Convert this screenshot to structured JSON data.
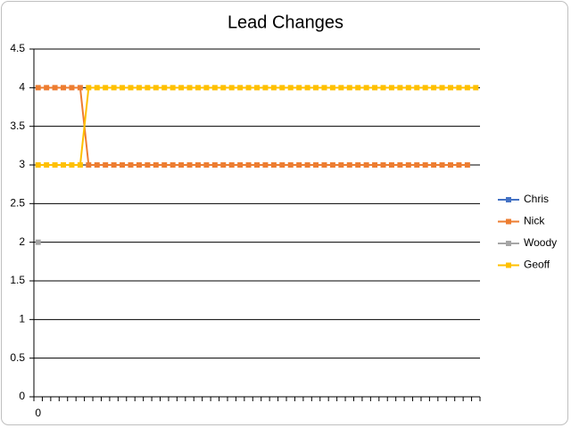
{
  "chart_data": {
    "type": "line",
    "title": "Lead Changes",
    "categories": [
      "0",
      null,
      null,
      null,
      null,
      null,
      null,
      null,
      null,
      null,
      null,
      null,
      null,
      null,
      null,
      null,
      null,
      null,
      null,
      null,
      null,
      null,
      null,
      null,
      null,
      null,
      null,
      null,
      null,
      null,
      null,
      null,
      null,
      null,
      null,
      null,
      null,
      null,
      null,
      null,
      null,
      null,
      null,
      null,
      null,
      null,
      null,
      null,
      null,
      null,
      null,
      null,
      null
    ],
    "series": [
      {
        "name": "Chris",
        "color": "#4472c4",
        "values": [
          null,
          null,
          null,
          null,
          null,
          null,
          null,
          null,
          null,
          null,
          null,
          null,
          null,
          null,
          null,
          null,
          null,
          null,
          null,
          null,
          null,
          null,
          null,
          null,
          null,
          null,
          null,
          null,
          null,
          null,
          null,
          null,
          null,
          null,
          null,
          null,
          null,
          null,
          null,
          null,
          null,
          null,
          null,
          null,
          null,
          null,
          null,
          null,
          null,
          null,
          null,
          null,
          null
        ]
      },
      {
        "name": "Nick",
        "color": "#ed7d31",
        "values": [
          4,
          4,
          4,
          4,
          4,
          4,
          3,
          3,
          3,
          3,
          3,
          3,
          3,
          3,
          3,
          3,
          3,
          3,
          3,
          3,
          3,
          3,
          3,
          3,
          3,
          3,
          3,
          3,
          3,
          3,
          3,
          3,
          3,
          3,
          3,
          3,
          3,
          3,
          3,
          3,
          3,
          3,
          3,
          3,
          3,
          3,
          3,
          3,
          3,
          3,
          3,
          3,
          null
        ]
      },
      {
        "name": "Woody",
        "color": "#a5a5a5",
        "values": [
          2,
          null,
          null,
          null,
          null,
          null,
          null,
          null,
          null,
          null,
          null,
          null,
          null,
          null,
          null,
          null,
          null,
          null,
          null,
          null,
          null,
          null,
          null,
          null,
          null,
          null,
          null,
          null,
          null,
          null,
          null,
          null,
          null,
          null,
          null,
          null,
          null,
          null,
          null,
          null,
          null,
          null,
          null,
          null,
          null,
          null,
          null,
          null,
          null,
          null,
          null,
          null,
          null
        ]
      },
      {
        "name": "Geoff",
        "color": "#ffc000",
        "values": [
          3,
          3,
          3,
          3,
          3,
          3,
          4,
          4,
          4,
          4,
          4,
          4,
          4,
          4,
          4,
          4,
          4,
          4,
          4,
          4,
          4,
          4,
          4,
          4,
          4,
          4,
          4,
          4,
          4,
          4,
          4,
          4,
          4,
          4,
          4,
          4,
          4,
          4,
          4,
          4,
          4,
          4,
          4,
          4,
          4,
          4,
          4,
          4,
          4,
          4,
          4,
          4,
          4
        ]
      }
    ],
    "ylim": [
      0,
      4.5
    ],
    "yticks": [
      0,
      0.5,
      1,
      1.5,
      2,
      2.5,
      3,
      3.5,
      4,
      4.5
    ],
    "grid": true,
    "legend": "right"
  }
}
